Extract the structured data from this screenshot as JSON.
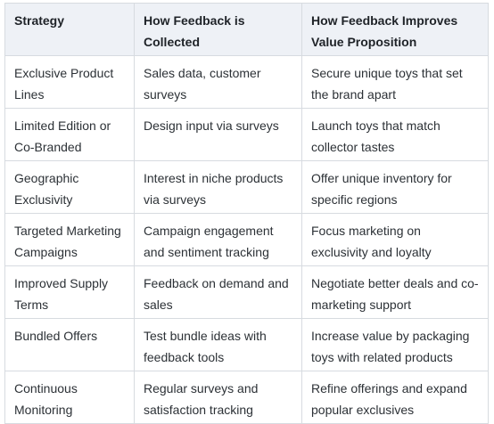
{
  "table": {
    "headers": [
      "Strategy",
      "How Feedback is Collected",
      "How Feedback Improves Value Proposition"
    ],
    "rows": [
      [
        "Exclusive Product Lines",
        "Sales data, customer surveys",
        "Secure unique toys that set the brand apart"
      ],
      [
        "Limited Edition or Co-Branded",
        "Design input via surveys",
        "Launch toys that match collector tastes"
      ],
      [
        "Geographic Exclusivity",
        "Interest in niche products via surveys",
        "Offer unique inventory for specific regions"
      ],
      [
        "Targeted Marketing Campaigns",
        "Campaign engagement and sentiment tracking",
        "Focus marketing on exclusivity and loyalty"
      ],
      [
        "Improved Supply Terms",
        "Feedback on demand and sales",
        "Negotiate better deals and co-marketing support"
      ],
      [
        "Bundled Offers",
        "Test bundle ideas with feedback tools",
        "Increase value by packaging toys with related products"
      ],
      [
        "Continuous Monitoring",
        "Regular surveys and satisfaction tracking",
        "Refine offerings and expand popular exclusives"
      ]
    ]
  }
}
